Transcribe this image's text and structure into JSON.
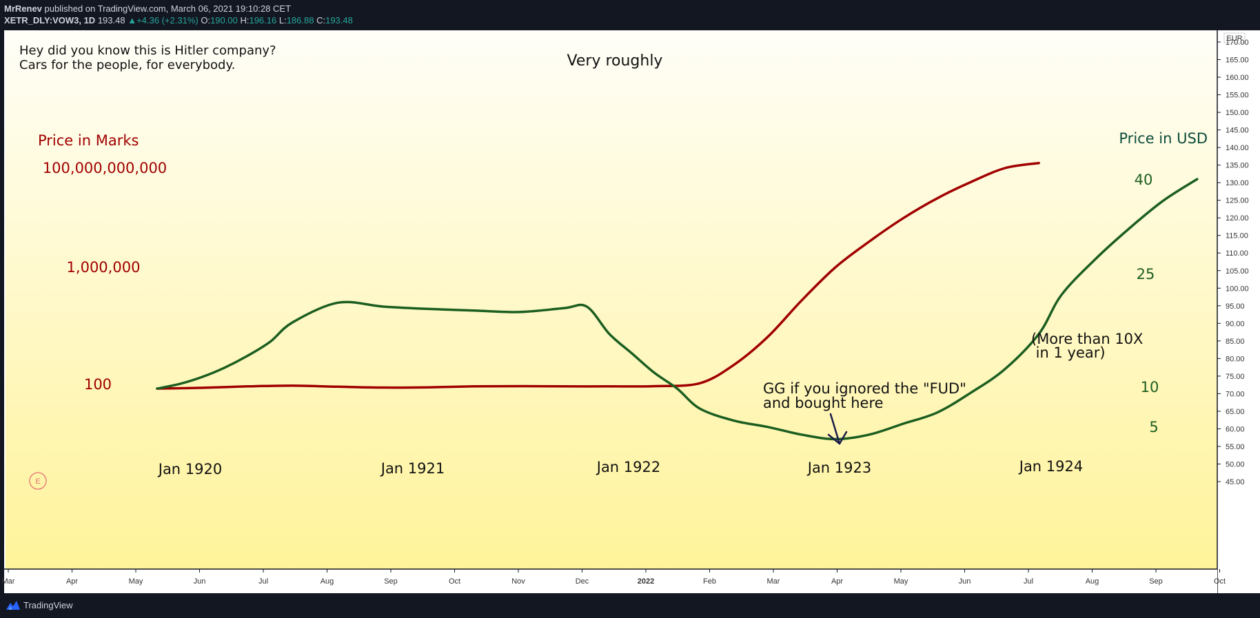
{
  "header": {
    "author": "MrRenev",
    "published": " published on TradingView.com, March 06, 2021 19:10:28 CET",
    "symbol": "XETR_DLY:VOW3, 1D",
    "last": "193.48",
    "change": "+4.36 (+2.31%)",
    "o_label": "O:",
    "o": "190.00",
    "h_label": "H:",
    "h": "196.16",
    "l_label": "L:",
    "l": "186.88",
    "c_label": "C:",
    "c": "193.48"
  },
  "footer": {
    "brand": "TradingView"
  },
  "colors": {
    "marks_line": "#a00000",
    "usd_line": "#1b5e20",
    "bg_top": "#fffef8",
    "bg_bottom": "#fff39a"
  },
  "chart_data": {
    "type": "line",
    "currency_label": "EUR",
    "right_axis": {
      "ticks": [
        "45.00",
        "50.00",
        "55.00",
        "60.00",
        "65.00",
        "70.00",
        "75.00",
        "80.00",
        "85.00",
        "90.00",
        "95.00",
        "100.00",
        "105.00",
        "110.00",
        "115.00",
        "120.00",
        "125.00",
        "130.00",
        "135.00",
        "140.00",
        "145.00",
        "150.00",
        "155.00",
        "160.00",
        "165.00",
        "170.00"
      ],
      "ylim": [
        45,
        170
      ]
    },
    "x_axis": {
      "ticks": [
        "Mar",
        "Apr",
        "May",
        "Jun",
        "Jul",
        "Aug",
        "Sep",
        "Oct",
        "Nov",
        "Dec",
        "2022",
        "Feb",
        "Mar",
        "Apr",
        "May",
        "Jun",
        "Jul",
        "Aug",
        "Sep",
        "Oct"
      ],
      "bold_ticks": [
        "2022"
      ]
    },
    "annotations": {
      "intro_line1": "Hey did you know this is Hitler company?",
      "intro_line2": "Cars for the people, for everybody.",
      "very_roughly": "Very roughly",
      "marks_title": "Price in Marks",
      "usd_title": "Price in USD",
      "marks_levels": [
        "100,000,000,000",
        "1,000,000",
        "100"
      ],
      "usd_levels": [
        "40",
        "25",
        "10",
        "5"
      ],
      "years": [
        "Jan 1920",
        "Jan 1921",
        "Jan 1922",
        "Jan 1923",
        "Jan 1924"
      ],
      "gg_line1": "GG if you ignored the \"FUD\"",
      "gg_line2": "and bought here",
      "tenx_line1": "(More than 10X",
      "tenx_line2": " in 1 year)",
      "earnings_badge": "E"
    },
    "series": [
      {
        "name": "Price in Marks",
        "x": [
          1920.0,
          1920.2,
          1920.4,
          1920.6,
          1920.8,
          1921.0,
          1921.2,
          1921.4,
          1921.6,
          1921.8,
          1922.0,
          1922.2,
          1922.4,
          1922.55,
          1922.7,
          1922.85,
          1923.0,
          1923.15,
          1923.3,
          1923.45,
          1923.6,
          1923.75,
          1923.9
        ],
        "values": [
          100,
          106,
          118,
          125,
          115,
          108,
          110,
          118,
          120,
          118,
          118,
          120,
          150,
          600,
          5000,
          80000,
          1000000,
          20000000,
          300000000,
          3000000000,
          20000000000,
          100000000000,
          180000000000
        ]
      },
      {
        "name": "Price in USD",
        "x": [
          1920.0,
          1920.1,
          1920.2,
          1920.3,
          1920.4,
          1920.5,
          1920.6,
          1920.8,
          1921.0,
          1921.2,
          1921.4,
          1921.6,
          1921.8,
          1921.9,
          1922.0,
          1922.1,
          1922.2,
          1922.3,
          1922.4,
          1922.55,
          1922.7,
          1922.85,
          1923.0,
          1923.15,
          1923.3,
          1923.45,
          1923.6,
          1923.75,
          1923.9,
          1924.0,
          1924.15,
          1924.3,
          1924.45,
          1924.6
        ],
        "values": [
          10,
          10.6,
          11.5,
          12.7,
          14.2,
          16,
          18.5,
          21,
          20.5,
          20.2,
          20,
          19.8,
          20.3,
          20.5,
          17,
          14.5,
          12,
          10,
          7.5,
          6,
          5.2,
          4.6,
          4.3,
          4.6,
          5.6,
          7,
          9.5,
          12.5,
          17,
          22,
          27,
          32,
          36.5,
          40
        ]
      }
    ]
  }
}
